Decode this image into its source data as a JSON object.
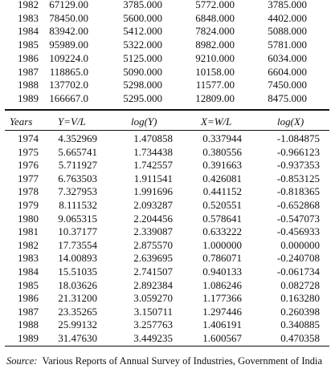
{
  "top_table": {
    "rows": [
      [
        "1982",
        "67129.00",
        "3785.000",
        "5772.000",
        "3785.000"
      ],
      [
        "1983",
        "78450.00",
        "5600.000",
        "6848.000",
        "4402.000"
      ],
      [
        "1984",
        "83942.00",
        "5412.000",
        "7824.000",
        "5088.000"
      ],
      [
        "1985",
        "95989.00",
        "5322.000",
        "8982.000",
        "5781.000"
      ],
      [
        "1986",
        "109224.0",
        "5125.000",
        "9210.000",
        "6034.000"
      ],
      [
        "1987",
        "118865.0",
        "5090.000",
        "10158.00",
        "6604.000"
      ],
      [
        "1988",
        "137702.0",
        "5298.000",
        "11577.00",
        "7450.000"
      ],
      [
        "1989",
        "166667.0",
        "5295.000",
        "12809.00",
        "8475.000"
      ]
    ]
  },
  "table": {
    "header": [
      "Years",
      "Y=V/L",
      "log(Y)",
      "X=W/L",
      "log(X)"
    ],
    "rows": [
      [
        "1974",
        "4.352969",
        "1.470858",
        "0.337944",
        "-1.084875"
      ],
      [
        "1975",
        "5.665741",
        "1.734438",
        "0.380556",
        "-0.966123"
      ],
      [
        "1976",
        "5.711927",
        "1.742557",
        "0.391663",
        "-0.937353"
      ],
      [
        "1977",
        "6.763503",
        "1.911541",
        "0.426081",
        "-0.853125"
      ],
      [
        "1978",
        "7.327953",
        "1.991696",
        "0.441152",
        "-0.818365"
      ],
      [
        "1979",
        "8.111532",
        "2.093287",
        "0.520551",
        "-0.652868"
      ],
      [
        "1980",
        "9.065315",
        "2.204456",
        "0.578641",
        "-0.547073"
      ],
      [
        "1981",
        "10.37177",
        "2.339087",
        "0.633222",
        "-0.456933"
      ],
      [
        "1982",
        "17.73554",
        "2.875570",
        "1.000000",
        "0.000000"
      ],
      [
        "1983",
        "14.00893",
        "2.639695",
        "0.786071",
        "-0.240708"
      ],
      [
        "1984",
        "15.51035",
        "2.741507",
        "0.940133",
        "-0.061734"
      ],
      [
        "1985",
        "18.03626",
        "2.892384",
        "1.086246",
        "0.082728"
      ],
      [
        "1986",
        "21.31200",
        "3.059270",
        "1.177366",
        "0.163280"
      ],
      [
        "1987",
        "23.35265",
        "3.150711",
        "1.297446",
        "0.260398"
      ],
      [
        "1988",
        "25.99132",
        "3.257763",
        "1.406191",
        "0.340885"
      ],
      [
        "1989",
        "31.47630",
        "3.449235",
        "1.600567",
        "0.470358"
      ]
    ]
  },
  "source": {
    "label": "Source:",
    "text": "Various Reports of Annual Survey of Industries, Government of India"
  }
}
